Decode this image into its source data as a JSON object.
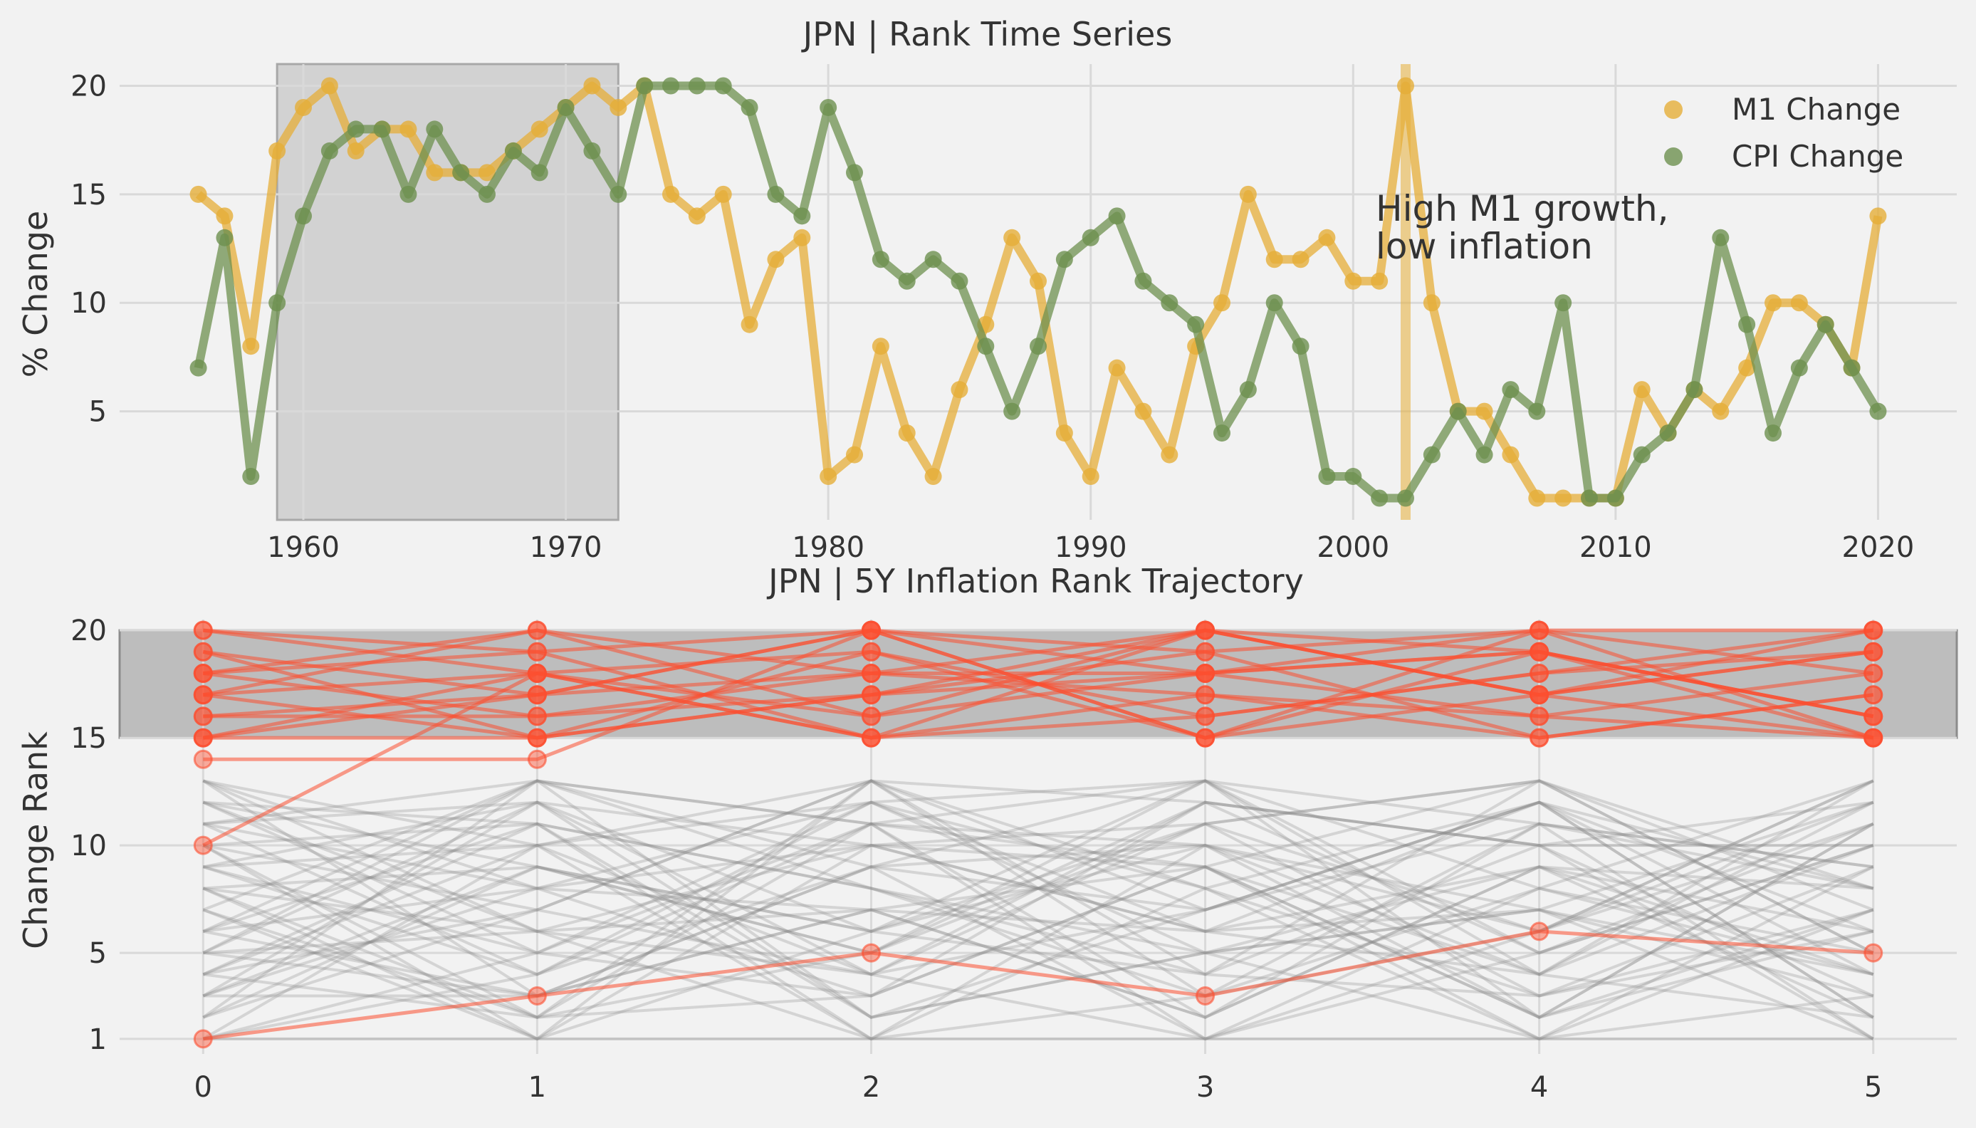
{
  "chart_data": [
    {
      "type": "line",
      "title": "JPN | Rank Time Series",
      "xlabel": "",
      "ylabel": "% Change",
      "x_ticks": [
        1960,
        1970,
        1980,
        1990,
        2000,
        2010,
        2020
      ],
      "y_ticks": [
        5,
        10,
        15,
        20
      ],
      "xlim": [
        1953,
        2023
      ],
      "ylim": [
        0,
        21
      ],
      "grid": true,
      "legend_position": "top-right",
      "x": [
        1956,
        1957,
        1958,
        1959,
        1960,
        1961,
        1962,
        1963,
        1964,
        1965,
        1966,
        1967,
        1968,
        1969,
        1970,
        1971,
        1972,
        1973,
        1974,
        1975,
        1976,
        1977,
        1978,
        1979,
        1980,
        1981,
        1982,
        1983,
        1984,
        1985,
        1986,
        1987,
        1988,
        1989,
        1990,
        1991,
        1992,
        1993,
        1994,
        1995,
        1996,
        1997,
        1998,
        1999,
        2000,
        2001,
        2002,
        2003,
        2004,
        2005,
        2006,
        2007,
        2008,
        2009,
        2010,
        2011,
        2012,
        2013,
        2014,
        2015,
        2016,
        2017,
        2018,
        2019,
        2020
      ],
      "series": [
        {
          "name": "M1 Change",
          "color": "#e5ae38",
          "values": [
            15,
            14,
            8,
            17,
            19,
            20,
            17,
            18,
            18,
            16,
            16,
            16,
            17,
            18,
            19,
            20,
            19,
            20,
            15,
            14,
            15,
            9,
            12,
            13,
            2,
            3,
            8,
            4,
            2,
            6,
            9,
            13,
            11,
            4,
            2,
            7,
            5,
            3,
            8,
            10,
            15,
            12,
            12,
            13,
            11,
            11,
            20,
            10,
            5,
            5,
            3,
            1,
            1,
            1,
            1,
            6,
            4,
            6,
            5,
            7,
            10,
            10,
            9,
            7,
            14
          ]
        },
        {
          "name": "CPI Change",
          "color": "#6d904f",
          "values": [
            7,
            13,
            2,
            10,
            14,
            17,
            18,
            18,
            15,
            18,
            16,
            15,
            17,
            16,
            19,
            17,
            15,
            20,
            20,
            20,
            20,
            19,
            15,
            14,
            19,
            16,
            12,
            11,
            12,
            11,
            8,
            5,
            8,
            12,
            13,
            14,
            11,
            10,
            9,
            4,
            6,
            10,
            8,
            2,
            2,
            1,
            1,
            3,
            5,
            3,
            6,
            5,
            10,
            1,
            1,
            3,
            4,
            6,
            13,
            9,
            4,
            7,
            9,
            7,
            5
          ]
        }
      ],
      "shaded_x_range": [
        1959,
        1972
      ],
      "vertical_line_x": 2002,
      "annotation": "High M1 growth,\nlow inflation"
    },
    {
      "type": "line",
      "title": "JPN | 5Y Inflation Rank Trajectory",
      "xlabel": "",
      "ylabel": "Change Rank",
      "x_ticks": [
        0,
        1,
        2,
        3,
        4,
        5
      ],
      "y_ticks": [
        1,
        5,
        10,
        15,
        20
      ],
      "xlim": [
        -0.25,
        5.25
      ],
      "ylim": [
        0.3,
        20.5
      ],
      "grid": true,
      "shaded_y_range": [
        15,
        20
      ],
      "background_trajectories": [
        [
          5,
          3,
          7,
          2,
          9,
          4
        ],
        [
          9,
          12,
          4,
          11,
          6,
          13
        ],
        [
          13,
          8,
          10,
          6,
          12,
          2
        ],
        [
          1,
          5,
          3,
          9,
          2,
          7
        ],
        [
          4,
          10,
          13,
          7,
          11,
          1
        ],
        [
          8,
          2,
          11,
          13,
          4,
          10
        ],
        [
          12,
          6,
          1,
          10,
          7,
          12
        ],
        [
          3,
          9,
          6,
          4,
          13,
          8
        ],
        [
          7,
          13,
          9,
          1,
          5,
          11
        ],
        [
          11,
          4,
          12,
          8,
          3,
          6
        ],
        [
          2,
          7,
          4,
          12,
          10,
          3
        ],
        [
          6,
          11,
          8,
          5,
          1,
          9
        ],
        [
          10,
          1,
          13,
          3,
          8,
          5
        ],
        [
          12,
          9,
          5,
          13,
          2,
          11
        ],
        [
          5,
          13,
          2,
          7,
          12,
          4
        ],
        [
          9,
          4,
          11,
          10,
          6,
          13
        ],
        [
          13,
          6,
          7,
          2,
          11,
          8
        ],
        [
          3,
          12,
          10,
          6,
          9,
          2
        ],
        [
          8,
          1,
          6,
          11,
          13,
          7
        ],
        [
          11,
          8,
          3,
          9,
          4,
          12
        ],
        [
          1,
          10,
          12,
          5,
          7,
          3
        ],
        [
          6,
          3,
          9,
          13,
          5,
          10
        ],
        [
          4,
          11,
          1,
          8,
          12,
          6
        ],
        [
          10,
          7,
          13,
          4,
          3,
          9
        ],
        [
          7,
          2,
          5,
          12,
          10,
          1
        ],
        [
          2,
          13,
          8,
          3,
          6,
          12
        ],
        [
          12,
          5,
          11,
          9,
          1,
          7
        ],
        [
          9,
          10,
          4,
          1,
          8,
          13
        ],
        [
          5,
          6,
          10,
          11,
          13,
          5
        ],
        [
          13,
          3,
          7,
          6,
          4,
          2
        ],
        [
          3,
          8,
          12,
          13,
          11,
          9
        ],
        [
          11,
          12,
          2,
          5,
          7,
          4
        ],
        [
          8,
          9,
          6,
          10,
          2,
          11
        ],
        [
          1,
          4,
          9,
          7,
          12,
          8
        ],
        [
          6,
          13,
          11,
          2,
          9,
          6
        ],
        [
          10,
          2,
          3,
          12,
          5,
          10
        ],
        [
          4,
          7,
          13,
          8,
          1,
          3
        ],
        [
          12,
          11,
          8,
          4,
          10,
          12
        ],
        [
          7,
          1,
          10,
          9,
          13,
          5
        ],
        [
          2,
          9,
          5,
          11,
          3,
          7
        ],
        [
          9,
          5,
          12,
          6,
          7,
          1
        ],
        [
          13,
          10,
          1,
          3,
          11,
          9
        ],
        [
          5,
          12,
          6,
          13,
          8,
          4
        ],
        [
          3,
          3,
          9,
          10,
          4,
          13
        ],
        [
          8,
          6,
          4,
          7,
          12,
          2
        ],
        [
          11,
          13,
          11,
          1,
          6,
          11
        ],
        [
          6,
          8,
          7,
          9,
          2,
          6
        ],
        [
          10,
          11,
          2,
          5,
          9,
          8
        ],
        [
          4,
          2,
          13,
          12,
          10,
          10
        ],
        [
          1,
          1,
          1,
          1,
          1,
          1
        ]
      ],
      "highlighted_trajectories": [
        [
          15,
          18,
          16,
          20,
          17,
          19
        ],
        [
          16,
          17,
          20,
          15,
          19,
          16
        ],
        [
          17,
          20,
          18,
          18,
          16,
          15
        ],
        [
          18,
          16,
          17,
          19,
          20,
          18
        ],
        [
          19,
          15,
          19,
          16,
          18,
          20
        ],
        [
          20,
          19,
          15,
          17,
          15,
          17
        ],
        [
          15,
          15,
          17,
          20,
          19,
          16
        ],
        [
          17,
          18,
          19,
          15,
          17,
          20
        ],
        [
          18,
          20,
          16,
          18,
          20,
          15
        ],
        [
          16,
          16,
          18,
          17,
          16,
          18
        ],
        [
          19,
          17,
          20,
          19,
          15,
          17
        ],
        [
          20,
          18,
          15,
          16,
          18,
          19
        ],
        [
          15,
          17,
          18,
          20,
          17,
          15
        ],
        [
          17,
          15,
          17,
          18,
          19,
          16
        ],
        [
          18,
          19,
          20,
          15,
          20,
          20
        ],
        [
          14,
          14,
          20,
          18,
          19,
          15
        ],
        [
          10,
          18,
          15,
          20,
          17,
          19
        ],
        [
          1,
          3,
          5,
          3,
          6,
          5
        ]
      ]
    }
  ]
}
